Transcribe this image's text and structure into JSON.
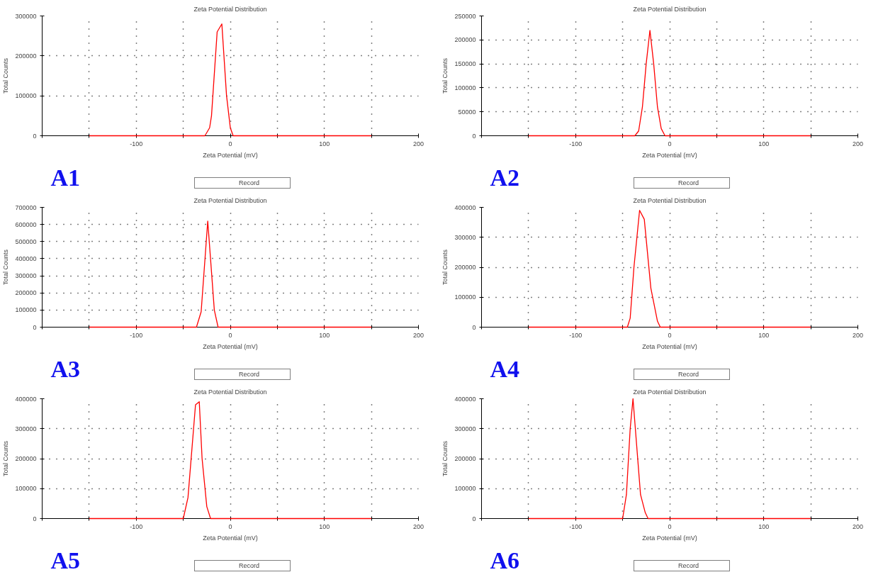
{
  "chart_data": [
    {
      "type": "line",
      "title": "Zeta Potential Distribution",
      "xlabel": "Zeta Potential (mV)",
      "ylabel": "Total Counts",
      "annotations": [
        "A1"
      ],
      "series": [
        {
          "name": "Record",
          "color": "#ff0000",
          "x": [
            -150,
            -27,
            -22,
            -20,
            -14,
            -9,
            -4,
            0,
            3,
            150
          ],
          "values": [
            0,
            0,
            20000,
            50000,
            260000,
            280000,
            100000,
            20000,
            0,
            0
          ]
        }
      ],
      "xlim": [
        -200,
        200
      ],
      "xticks": [
        {
          "value": -200,
          "label": null
        },
        {
          "value": -150,
          "label": null
        },
        -100,
        {
          "value": -50,
          "label": null
        },
        0,
        {
          "value": 50,
          "label": null
        },
        100,
        {
          "value": 150,
          "label": null
        },
        200
      ],
      "ylim": [
        0,
        300000
      ],
      "yticks": [
        0,
        100000,
        200000,
        300000
      ],
      "grid": true,
      "legend": "bottom"
    },
    {
      "type": "line",
      "title": "Zeta Potential Distribution",
      "xlabel": "Zeta Potential (mV)",
      "ylabel": "Total Counts",
      "annotations": [
        "A2"
      ],
      "series": [
        {
          "name": "Record",
          "color": "#ff0000",
          "x": [
            -150,
            -37,
            -33,
            -29,
            -25,
            -21,
            -17,
            -13,
            -9,
            -5,
            150
          ],
          "values": [
            0,
            0,
            10000,
            60000,
            150000,
            220000,
            150000,
            60000,
            15000,
            0,
            0
          ]
        }
      ],
      "xlim": [
        -200,
        200
      ],
      "xticks": [
        {
          "value": -200,
          "label": null
        },
        {
          "value": -150,
          "label": null
        },
        -100,
        {
          "value": -50,
          "label": null
        },
        0,
        {
          "value": 50,
          "label": null
        },
        100,
        {
          "value": 150,
          "label": null
        },
        200
      ],
      "ylim": [
        0,
        250000
      ],
      "yticks": [
        0,
        50000,
        100000,
        150000,
        200000,
        250000
      ],
      "grid": true,
      "legend": "bottom"
    },
    {
      "type": "line",
      "title": "Zeta Potential Distribution",
      "xlabel": "Zeta Potential (mV)",
      "ylabel": "Total Counts",
      "annotations": [
        "A3"
      ],
      "series": [
        {
          "name": "Record",
          "color": "#ff0000",
          "x": [
            -150,
            -36,
            -31,
            -24,
            -17,
            -13,
            150
          ],
          "values": [
            0,
            0,
            90000,
            620000,
            100000,
            0,
            0
          ]
        }
      ],
      "xlim": [
        -200,
        200
      ],
      "xticks": [
        {
          "value": -200,
          "label": null
        },
        {
          "value": -150,
          "label": null
        },
        -100,
        {
          "value": -50,
          "label": null
        },
        0,
        {
          "value": 50,
          "label": null
        },
        100,
        {
          "value": 150,
          "label": null
        },
        200
      ],
      "ylim": [
        0,
        700000
      ],
      "yticks": [
        0,
        100000,
        200000,
        300000,
        400000,
        500000,
        600000,
        700000
      ],
      "grid": true,
      "legend": "bottom"
    },
    {
      "type": "line",
      "title": "Zeta Potential Distribution",
      "xlabel": "Zeta Potential (mV)",
      "ylabel": "Total Counts",
      "annotations": [
        "A4"
      ],
      "series": [
        {
          "name": "Record",
          "color": "#ff0000",
          "x": [
            -150,
            -45,
            -42,
            -38,
            -32,
            -27,
            -20,
            -13,
            -10,
            150
          ],
          "values": [
            0,
            0,
            30000,
            200000,
            390000,
            360000,
            130000,
            20000,
            0,
            0
          ]
        }
      ],
      "xlim": [
        -200,
        200
      ],
      "xticks": [
        {
          "value": -200,
          "label": null
        },
        {
          "value": -150,
          "label": null
        },
        -100,
        {
          "value": -50,
          "label": null
        },
        0,
        {
          "value": 50,
          "label": null
        },
        100,
        {
          "value": 150,
          "label": null
        },
        200
      ],
      "ylim": [
        0,
        400000
      ],
      "yticks": [
        0,
        100000,
        200000,
        300000,
        400000
      ],
      "grid": true,
      "legend": "bottom"
    },
    {
      "type": "line",
      "title": "Zeta Potential Distribution",
      "xlabel": "Zeta Potential (mV)",
      "ylabel": "Total Counts",
      "annotations": [
        "A5"
      ],
      "series": [
        {
          "name": "Record",
          "color": "#ff0000",
          "x": [
            -150,
            -50,
            -45,
            -37,
            -33,
            -30,
            -25,
            -21,
            150
          ],
          "values": [
            0,
            0,
            70000,
            380000,
            390000,
            200000,
            40000,
            0,
            0
          ]
        }
      ],
      "xlim": [
        -200,
        200
      ],
      "xticks": [
        {
          "value": -200,
          "label": null
        },
        {
          "value": -150,
          "label": null
        },
        -100,
        {
          "value": -50,
          "label": null
        },
        0,
        {
          "value": 50,
          "label": null
        },
        100,
        {
          "value": 150,
          "label": null
        },
        200
      ],
      "ylim": [
        0,
        400000
      ],
      "yticks": [
        0,
        100000,
        200000,
        300000,
        400000
      ],
      "grid": true,
      "legend": "bottom"
    },
    {
      "type": "line",
      "title": "Zeta Potential Distribution",
      "xlabel": "Zeta Potential (mV)",
      "ylabel": "Total Counts",
      "annotations": [
        "A6"
      ],
      "series": [
        {
          "name": "Record",
          "color": "#ff0000",
          "x": [
            -150,
            -50,
            -46,
            -42,
            -39,
            -31,
            -26,
            -23,
            150
          ],
          "values": [
            0,
            0,
            80000,
            300000,
            400000,
            80000,
            20000,
            0,
            0
          ]
        }
      ],
      "xlim": [
        -200,
        200
      ],
      "xticks": [
        {
          "value": -200,
          "label": null
        },
        {
          "value": -150,
          "label": null
        },
        -100,
        {
          "value": -50,
          "label": null
        },
        0,
        {
          "value": 50,
          "label": null
        },
        100,
        {
          "value": 150,
          "label": null
        },
        200
      ],
      "ylim": [
        0,
        400000
      ],
      "yticks": [
        0,
        100000,
        200000,
        300000,
        400000
      ],
      "grid": true,
      "legend": "bottom"
    }
  ]
}
